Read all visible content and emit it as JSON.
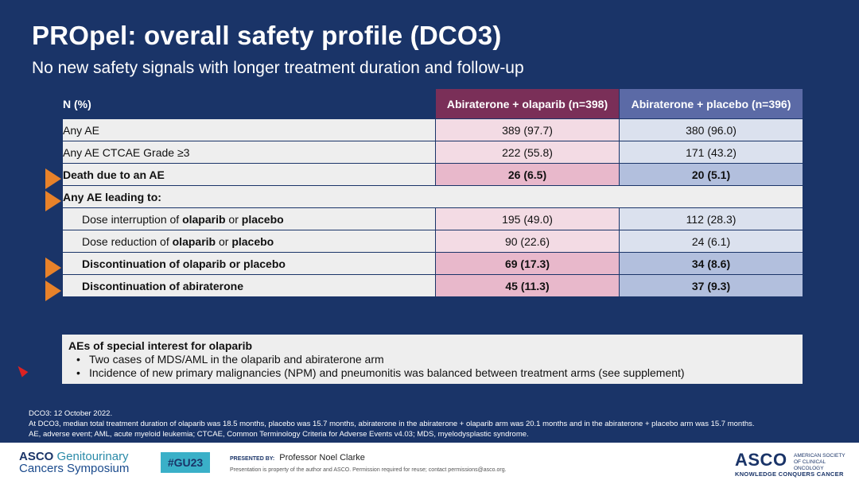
{
  "slide": {
    "title": "PROpel: overall safety profile (DCO3)",
    "subtitle": "No new safety signals with longer treatment duration and follow-up"
  },
  "table": {
    "headers": {
      "label": "N (%)",
      "olaparib": "Abiraterone + olaparib (n=398)",
      "placebo": "Abiraterone + placebo (n=396)"
    },
    "rows": [
      {
        "label": "Any AE",
        "olaparib": "389 (97.7)",
        "placebo": "380 (96.0)"
      },
      {
        "label": "Any AE CTCAE Grade ≥3",
        "olaparib": "222 (55.8)",
        "placebo": "171 (43.2)"
      },
      {
        "label": "Death due to an AE",
        "olaparib": "26 (6.5)",
        "placebo": "20 (5.1)"
      },
      {
        "label": "Any AE leading to:"
      },
      {
        "label_parts": [
          "Dose interruption of ",
          "olaparib",
          " or ",
          "placebo"
        ],
        "olaparib": "195 (49.0)",
        "placebo": "112 (28.3)"
      },
      {
        "label_parts": [
          "Dose reduction of ",
          "olaparib",
          " or ",
          "placebo"
        ],
        "olaparib": "90 (22.6)",
        "placebo": "24 (6.1)"
      },
      {
        "label_parts": [
          "Discontinuation of olaparib",
          " or ",
          "placebo"
        ],
        "olaparib": "69 (17.3)",
        "placebo": "34 (8.6)"
      },
      {
        "label": "Discontinuation of abiraterone",
        "olaparib": "45 (11.3)",
        "placebo": "37 (9.3)"
      }
    ]
  },
  "aesi": {
    "heading": "AEs of special interest for olaparib",
    "bullets": [
      "Two cases of MDS/AML in the olaparib and abiraterone arm",
      "Incidence of new primary malignancies (NPM) and pneumonitis was balanced between treatment arms (see supplement)"
    ],
    "bullet_symbol": "•"
  },
  "footnotes": [
    "DCO3: 12 October 2022.",
    "At DCO3, median total treatment duration of olaparib was 18.5 months, placebo was 15.7 months, abiraterone in the abiraterone + olaparib arm was 20.1 months and in the abiraterone + placebo arm was 15.7 months.",
    "AE, adverse event; AML, acute myeloid leukemia; CTCAE, Common Terminology Criteria for Adverse Events v4.03; MDS, myelodysplastic syndrome."
  ],
  "footer": {
    "logo_asco": "ASCO",
    "logo_gt": "Genitourinary",
    "logo_line2": "Cancers Symposium",
    "hashtag": "#GU23",
    "presented_label": "PRESENTED BY:",
    "presenter": "Professor Noel Clarke",
    "property": "Presentation is property of the author and ASCO. Permission required for reuse; contact permissions@asco.org.",
    "asco_right": "ASCO",
    "asco_society": "AMERICAN SOCIETY OF CLINICAL ONCOLOGY",
    "tagline": "KNOWLEDGE CONQUERS CANCER"
  },
  "colors": {
    "background": "#1a3468",
    "olaparib_header": "#7a2f58",
    "placebo_header": "#5b6aa6",
    "arrow": "#e8822a"
  }
}
